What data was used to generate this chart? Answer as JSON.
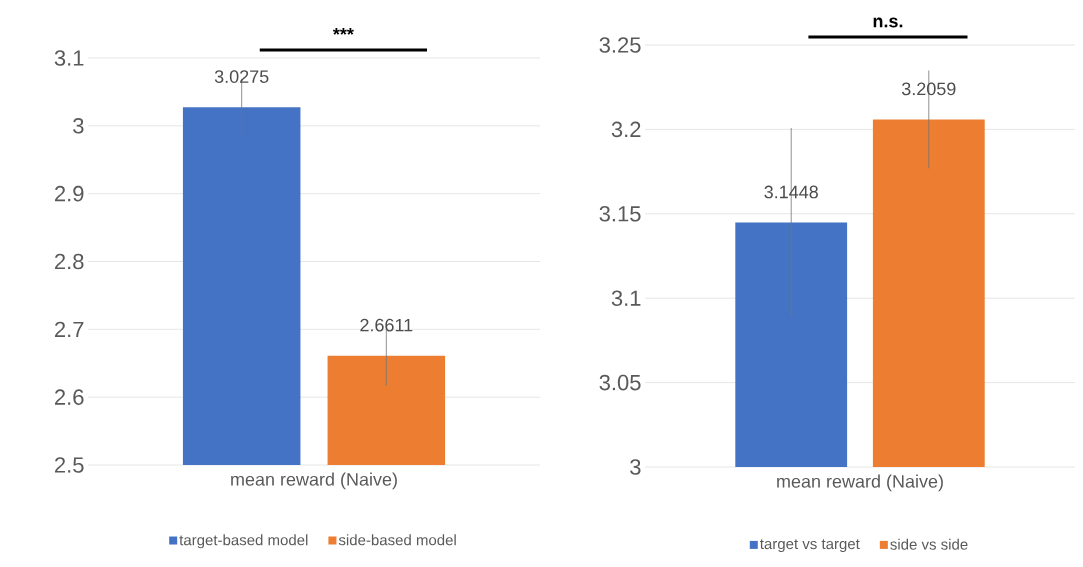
{
  "chart_data": [
    {
      "type": "bar",
      "categories": [
        "mean reward (Naive)"
      ],
      "series": [
        {
          "name": "target-based model",
          "color": "#4472c4",
          "values": [
            3.0275
          ],
          "errors": [
            0.042
          ]
        },
        {
          "name": "side-based model",
          "color": "#ed7d31",
          "values": [
            2.6611
          ],
          "errors": [
            0.044
          ]
        }
      ],
      "ylim": [
        2.5,
        3.1
      ],
      "yticks": [
        2.5,
        2.6,
        2.7,
        2.8,
        2.9,
        3,
        3.1
      ],
      "grid": "y",
      "legend": "bottom",
      "data_labels": true,
      "annotations": [
        "***"
      ]
    },
    {
      "type": "bar",
      "categories": [
        "mean reward (Naive)"
      ],
      "series": [
        {
          "name": "target vs target",
          "color": "#4472c4",
          "values": [
            3.1448
          ],
          "errors": [
            0.056
          ]
        },
        {
          "name": "side vs side",
          "color": "#ed7d31",
          "values": [
            3.2059
          ],
          "errors": [
            0.029
          ]
        }
      ],
      "ylim": [
        3,
        3.25
      ],
      "yticks": [
        3,
        3.05,
        3.1,
        3.15,
        3.2,
        3.25
      ],
      "grid": "y",
      "legend": "bottom",
      "data_labels": true,
      "annotations": [
        "n.s."
      ]
    }
  ]
}
